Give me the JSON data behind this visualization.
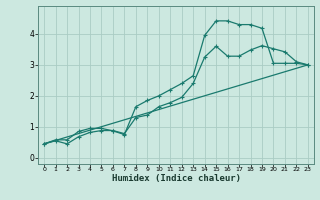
{
  "xlabel": "Humidex (Indice chaleur)",
  "bg_color": "#cce8e0",
  "line_color": "#1a7a6e",
  "grid_color": "#aaccc4",
  "x_ticks": [
    0,
    1,
    2,
    3,
    4,
    5,
    6,
    7,
    8,
    9,
    10,
    11,
    12,
    13,
    14,
    15,
    16,
    17,
    18,
    19,
    20,
    21,
    22,
    23
  ],
  "y_ticks": [
    0,
    1,
    2,
    3,
    4
  ],
  "ylim": [
    -0.2,
    4.9
  ],
  "xlim": [
    -0.5,
    23.5
  ],
  "line1_x": [
    0,
    1,
    2,
    3,
    4,
    5,
    6,
    7,
    8,
    9,
    10,
    11,
    12,
    13,
    14,
    15,
    16,
    17,
    18,
    19,
    20,
    21,
    22,
    23
  ],
  "line1_y": [
    0.45,
    0.58,
    0.58,
    0.85,
    0.95,
    0.95,
    0.87,
    0.75,
    1.65,
    1.85,
    2.0,
    2.2,
    2.4,
    2.65,
    3.95,
    4.42,
    4.42,
    4.3,
    4.3,
    4.18,
    3.05,
    3.05,
    3.05,
    3.0
  ],
  "line2_x": [
    0,
    1,
    2,
    3,
    4,
    5,
    6,
    7,
    8,
    9,
    10,
    11,
    12,
    13,
    14,
    15,
    16,
    17,
    18,
    19,
    20,
    21,
    22,
    23
  ],
  "line2_y": [
    0.45,
    0.55,
    0.45,
    0.68,
    0.82,
    0.88,
    0.88,
    0.78,
    1.3,
    1.38,
    1.65,
    1.78,
    1.95,
    2.4,
    3.25,
    3.6,
    3.28,
    3.28,
    3.48,
    3.62,
    3.52,
    3.42,
    3.1,
    3.0
  ],
  "line3_x": [
    0,
    23
  ],
  "line3_y": [
    0.45,
    3.0
  ],
  "markersize": 3.0,
  "linewidth": 0.9
}
